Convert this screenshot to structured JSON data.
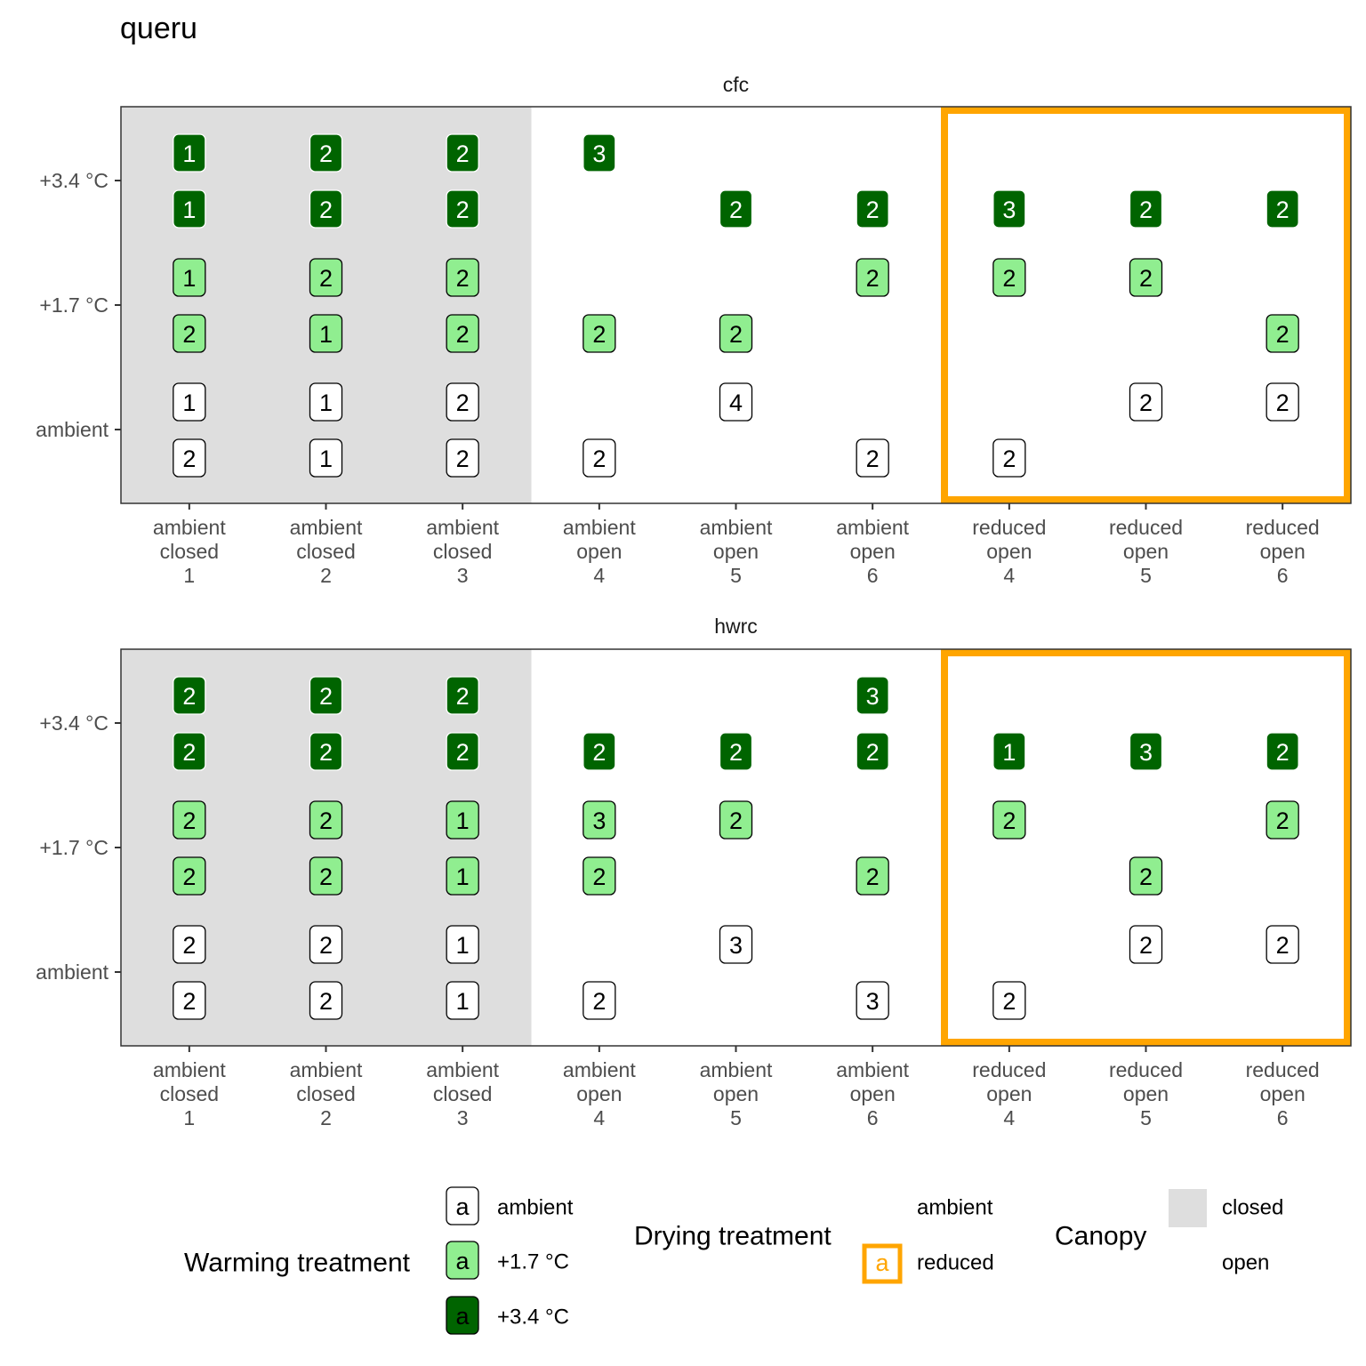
{
  "chart_data": {
    "type": "table",
    "title": "queru",
    "y_tick_labels": [
      "+3.4 °C",
      "+1.7 °C",
      "ambient"
    ],
    "columns": [
      {
        "drying": "ambient",
        "canopy": "closed",
        "block": "1"
      },
      {
        "drying": "ambient",
        "canopy": "closed",
        "block": "2"
      },
      {
        "drying": "ambient",
        "canopy": "closed",
        "block": "3"
      },
      {
        "drying": "ambient",
        "canopy": "open",
        "block": "4"
      },
      {
        "drying": "ambient",
        "canopy": "open",
        "block": "5"
      },
      {
        "drying": "ambient",
        "canopy": "open",
        "block": "6"
      },
      {
        "drying": "reduced",
        "canopy": "open",
        "block": "4"
      },
      {
        "drying": "reduced",
        "canopy": "open",
        "block": "5"
      },
      {
        "drying": "reduced",
        "canopy": "open",
        "block": "6"
      }
    ],
    "row_warming": [
      "+3.4 °C",
      "+3.4 °C",
      "+1.7 °C",
      "+1.7 °C",
      "ambient",
      "ambient"
    ],
    "panels": [
      {
        "name": "cfc",
        "cells": [
          [
            "1",
            "2",
            "2",
            "3",
            "",
            "",
            "",
            "",
            ""
          ],
          [
            "1",
            "2",
            "2",
            "",
            "2",
            "2",
            "3",
            "2",
            "2"
          ],
          [
            "1",
            "2",
            "2",
            "",
            "",
            "2",
            "2",
            "2",
            ""
          ],
          [
            "2",
            "1",
            "2",
            "2",
            "2",
            "",
            "",
            "",
            "2"
          ],
          [
            "1",
            "1",
            "2",
            "",
            "4",
            "",
            "",
            "2",
            "2"
          ],
          [
            "2",
            "1",
            "2",
            "2",
            "",
            "2",
            "2",
            "",
            ""
          ]
        ]
      },
      {
        "name": "hwrc",
        "cells": [
          [
            "2",
            "2",
            "2",
            "",
            "",
            "3",
            "",
            "",
            ""
          ],
          [
            "2",
            "2",
            "2",
            "2",
            "2",
            "2",
            "1",
            "3",
            "2"
          ],
          [
            "2",
            "2",
            "1",
            "3",
            "2",
            "",
            "2",
            "",
            "2"
          ],
          [
            "2",
            "2",
            "1",
            "2",
            "",
            "2",
            "",
            "2",
            ""
          ],
          [
            "2",
            "2",
            "1",
            "",
            "3",
            "",
            "",
            "2",
            "2"
          ],
          [
            "2",
            "2",
            "1",
            "2",
            "",
            "3",
            "2",
            "",
            ""
          ]
        ]
      }
    ],
    "legends": [
      {
        "title": "Warming treatment",
        "entries": [
          {
            "key": "a",
            "label": "ambient",
            "fill": "#ffffff",
            "text": "#000000"
          },
          {
            "key": "a",
            "label": "+1.7 °C",
            "fill": "#90EE90",
            "text": "#000000"
          },
          {
            "key": "a",
            "label": "+3.4 °C",
            "fill": "#006400",
            "text": "#000000"
          }
        ]
      },
      {
        "title": "Drying treatment",
        "entries": [
          {
            "key": "",
            "label": "ambient"
          },
          {
            "key": "a",
            "label": "reduced"
          }
        ]
      },
      {
        "title": "Canopy",
        "entries": [
          {
            "label": "closed",
            "fill": "#DEDEDE"
          },
          {
            "label": "open",
            "fill": "#ffffff"
          }
        ]
      }
    ],
    "colors": {
      "ambient": "#ffffff",
      "plus_1_7": "#90EE90",
      "plus_3_4": "#006400",
      "closed_canopy": "#DEDEDE",
      "reduced_drying_border": "#FFA500"
    }
  }
}
